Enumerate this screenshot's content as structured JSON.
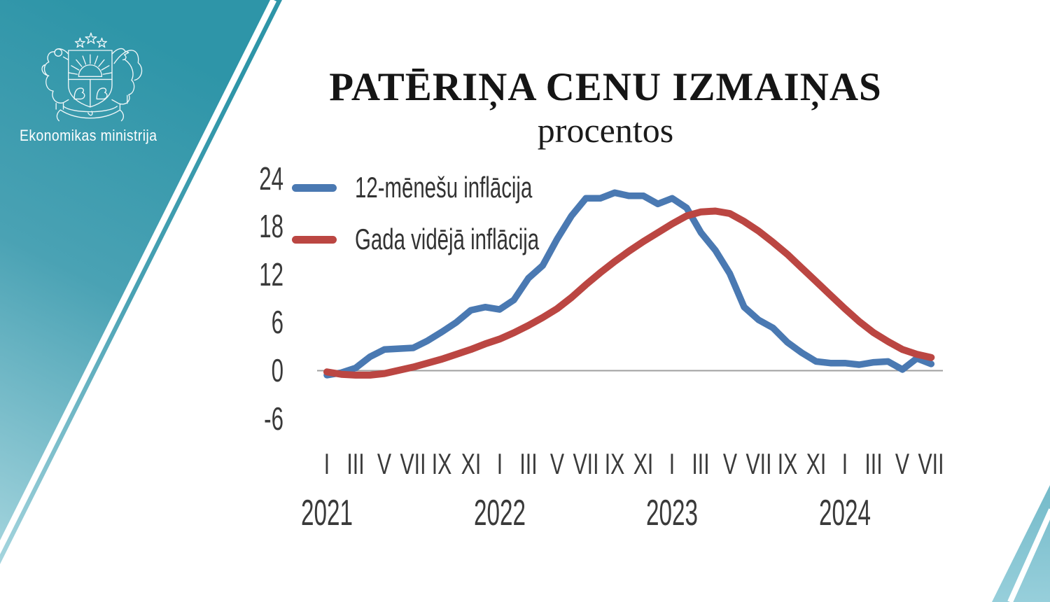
{
  "brand": {
    "org_name": "Ekonomikas ministrija",
    "emblem": "latvia-coat-of-arms"
  },
  "colors": {
    "teal_top": "#2e95a8",
    "teal_mid": "#4aa2b4",
    "teal_bottom": "#a5d5de",
    "corner_teal_top": "#74bac9",
    "corner_teal_bottom": "#97cfdb",
    "stripe_white": "#ffffff",
    "axis_gray": "#9f9f9f",
    "tick_text": "#3a3a3a",
    "title_text": "#151515",
    "series_blue": "#4a79b2",
    "series_red": "#bb4642"
  },
  "chart_data": {
    "type": "line",
    "title": "PATĒRIŅA CENU IZMAIŅAS",
    "subtitle": "procentos",
    "grid": false,
    "legend_position": "top-left",
    "y_ticks": [
      24,
      18,
      12,
      6,
      0,
      -6
    ],
    "ylim": [
      -6,
      26
    ],
    "x_unit": "month",
    "x_range": [
      "2021-01",
      "2024-07"
    ],
    "x_months": [
      "2021-01",
      "2021-02",
      "2021-03",
      "2021-04",
      "2021-05",
      "2021-06",
      "2021-07",
      "2021-08",
      "2021-09",
      "2021-10",
      "2021-11",
      "2021-12",
      "2022-01",
      "2022-02",
      "2022-03",
      "2022-04",
      "2022-05",
      "2022-06",
      "2022-07",
      "2022-08",
      "2022-09",
      "2022-10",
      "2022-11",
      "2022-12",
      "2023-01",
      "2023-02",
      "2023-03",
      "2023-04",
      "2023-05",
      "2023-06",
      "2023-07",
      "2023-08",
      "2023-09",
      "2023-10",
      "2023-11",
      "2023-12",
      "2024-01",
      "2024-02",
      "2024-03",
      "2024-04",
      "2024-05",
      "2024-06",
      "2024-07"
    ],
    "x_axis": {
      "years": [
        {
          "label": "2021",
          "month_ticks": [
            "I",
            "III",
            "V",
            "VII",
            "IX",
            "XI"
          ]
        },
        {
          "label": "2022",
          "month_ticks": [
            "I",
            "III",
            "V",
            "VII",
            "IX",
            "XI"
          ]
        },
        {
          "label": "2023",
          "month_ticks": [
            "I",
            "III",
            "V",
            "VII",
            "IX",
            "XI"
          ]
        },
        {
          "label": "2024",
          "month_ticks": [
            "I",
            "III",
            "V",
            "VII"
          ]
        }
      ]
    },
    "series": [
      {
        "name": "12-mēnešu inflācija",
        "color": "#4a79b2",
        "values": [
          -0.6,
          -0.3,
          0.3,
          1.7,
          2.6,
          2.7,
          2.8,
          3.7,
          4.8,
          6.0,
          7.5,
          7.9,
          7.6,
          8.8,
          11.5,
          13.1,
          16.4,
          19.3,
          21.5,
          21.5,
          22.2,
          21.8,
          21.8,
          20.8,
          21.5,
          20.3,
          17.2,
          15.0,
          12.1,
          7.9,
          6.3,
          5.3,
          3.5,
          2.2,
          1.1,
          0.9,
          0.9,
          0.7,
          1.0,
          1.1,
          0.1,
          1.5,
          0.8
        ]
      },
      {
        "name": "Gada vidējā inflācija",
        "color": "#bb4642",
        "values": [
          -0.2,
          -0.5,
          -0.6,
          -0.6,
          -0.4,
          0.0,
          0.4,
          0.9,
          1.4,
          2.0,
          2.6,
          3.3,
          3.9,
          4.7,
          5.6,
          6.6,
          7.7,
          9.1,
          10.7,
          12.2,
          13.6,
          14.9,
          16.1,
          17.2,
          18.3,
          19.3,
          19.8,
          19.9,
          19.6,
          18.6,
          17.4,
          16.0,
          14.5,
          12.8,
          11.1,
          9.4,
          7.7,
          6.1,
          4.7,
          3.6,
          2.6,
          2.0,
          1.6
        ]
      }
    ]
  }
}
